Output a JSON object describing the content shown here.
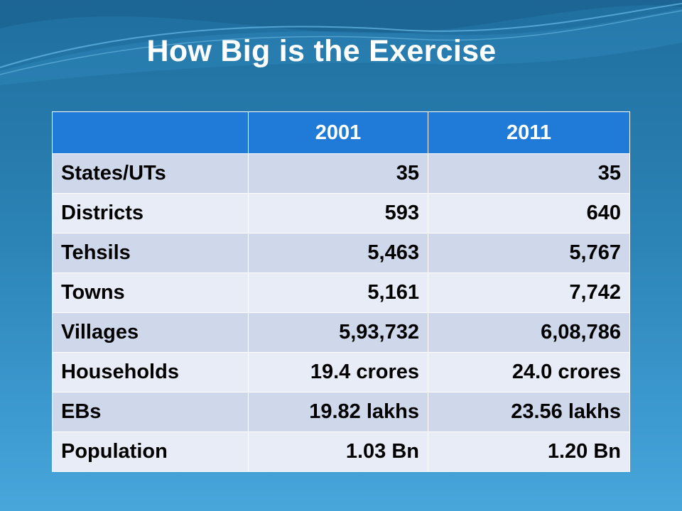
{
  "slide": {
    "title": "How Big is the Exercise"
  },
  "table": {
    "headers": [
      "",
      "2001",
      "2011"
    ],
    "rows": [
      [
        "States/UTs",
        "35",
        "35"
      ],
      [
        "Districts",
        "593",
        "640"
      ],
      [
        "Tehsils",
        "5,463",
        "5,767"
      ],
      [
        "Towns",
        "5,161",
        "7,742"
      ],
      [
        "Villages",
        "5,93,732",
        "6,08,786"
      ],
      [
        "Households",
        "19.4 crores",
        "24.0 crores"
      ],
      [
        "EBs",
        "19.82 lakhs",
        "23.56 lakhs"
      ],
      [
        "Population",
        "1.03 Bn",
        "1.20 Bn"
      ]
    ]
  },
  "colors": {
    "header_bg": "#1f7ad8",
    "row_dark": "#cfd8ea",
    "row_light": "#e8ecf6",
    "background": "#2b82b4"
  }
}
